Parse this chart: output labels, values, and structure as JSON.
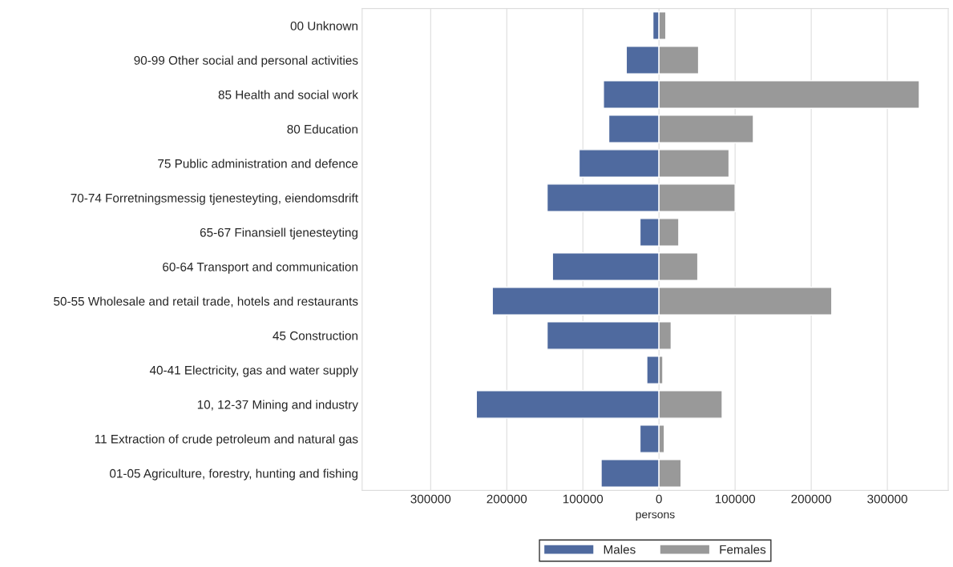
{
  "chart_data": {
    "type": "bar",
    "orientation": "horizontal",
    "stacked": true,
    "xlabel": "persons",
    "categories": [
      "00 Unknown",
      "90-99 Other social and personal activities",
      "85 Health and social work",
      "80 Education",
      "75 Public administration and defence",
      "70-74 Forretningsmessig tjenesteyting, eiendomsdrift",
      "65-67 Finansiell tjenesteyting",
      "60-64 Transport and communication",
      "50-55 Wholesale and retail trade, hotels and restaurants",
      "45 Construction",
      "40-41 Electricity, gas and water supply",
      "10, 12-37 Mining and industry",
      "11 Extraction of crude petroleum and natural gas",
      "01-05 Agriculture, forestry, hunting and fishing"
    ],
    "series": [
      {
        "name": "Males",
        "color": "#4f6a9f",
        "values": [
          -8000,
          -43000,
          -73000,
          -66000,
          -105000,
          -147000,
          -25000,
          -140000,
          -219000,
          -147000,
          -16000,
          -240000,
          -25000,
          -76000
        ]
      },
      {
        "name": "Females",
        "color": "#999999",
        "values": [
          9000,
          52000,
          342000,
          124000,
          92000,
          100000,
          26000,
          51000,
          227000,
          16000,
          5000,
          83000,
          7000,
          29000
        ]
      }
    ],
    "xlim": [
      -390000,
      380000
    ],
    "xticks": [
      {
        "value": -300000,
        "label": "300000"
      },
      {
        "value": -200000,
        "label": "200000"
      },
      {
        "value": -100000,
        "label": "100000"
      },
      0,
      100000,
      200000,
      300000
    ],
    "grid": "x",
    "legend": "bottom"
  }
}
